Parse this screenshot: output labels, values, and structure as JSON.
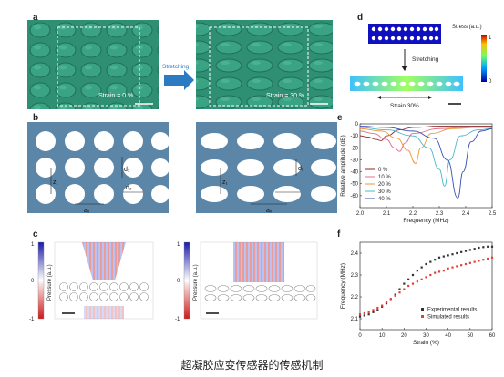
{
  "panel_labels": {
    "a": "a",
    "b": "b",
    "c": "c",
    "d": "d",
    "e": "e",
    "f": "f"
  },
  "panel_a": {
    "strain_left": "Strain = 0 %",
    "strain_right": "Strain = 30 %",
    "arrow_label": "Stretching",
    "color": "#2f8f73"
  },
  "panel_b": {
    "labels": {
      "z1": "z₁",
      "ax": "aₓ",
      "d1": "d₁",
      "d2": "d₂",
      "dx": "dₓ"
    },
    "plate_color": "#5b86a8"
  },
  "panel_c": {
    "colorbar_ticks": [
      "1",
      "0",
      "-1"
    ],
    "ylabel": "Pressure (a.u.)"
  },
  "panel_d": {
    "stretching_label": "Stretching",
    "strain_label": "Strain 30%",
    "colorbar_title": "Stress (a.u.)",
    "colorbar_ticks": [
      "1",
      "0"
    ]
  },
  "chart_data": [
    {
      "type": "line",
      "panel": "e",
      "xlabel": "Frequency (MHz)",
      "ylabel": "Relative amplitude (dB)",
      "xlim": [
        2.0,
        2.5
      ],
      "ylim": [
        -70,
        0
      ],
      "xticks": [
        "2.0",
        "2.1",
        "2.2",
        "2.3",
        "2.4",
        "2.5"
      ],
      "yticks": [
        "0",
        "-10",
        "-20",
        "-30",
        "-40",
        "-50",
        "-60"
      ],
      "legend_position": "lower-left",
      "series": [
        {
          "name": "0 %",
          "color": "#8c2a2a",
          "dip_x": 2.08,
          "dip_y": -14,
          "points": [
            [
              2.0,
              -10
            ],
            [
              2.03,
              -11
            ],
            [
              2.06,
              -13
            ],
            [
              2.08,
              -14
            ],
            [
              2.1,
              -10
            ],
            [
              2.15,
              -5
            ],
            [
              2.2,
              -3
            ],
            [
              2.3,
              -2
            ],
            [
              2.4,
              -2
            ],
            [
              2.5,
              -2
            ]
          ]
        },
        {
          "name": "10 %",
          "color": "#e0708a",
          "dip_x": 2.15,
          "dip_y": -23,
          "points": [
            [
              2.0,
              -6
            ],
            [
              2.05,
              -8
            ],
            [
              2.1,
              -13
            ],
            [
              2.13,
              -20
            ],
            [
              2.15,
              -23
            ],
            [
              2.17,
              -16
            ],
            [
              2.2,
              -8
            ],
            [
              2.3,
              -4
            ],
            [
              2.4,
              -3
            ],
            [
              2.5,
              -3
            ]
          ]
        },
        {
          "name": "20 %",
          "color": "#e89a3a",
          "dip_x": 2.21,
          "dip_y": -33,
          "points": [
            [
              2.0,
              -4
            ],
            [
              2.08,
              -6
            ],
            [
              2.14,
              -12
            ],
            [
              2.18,
              -22
            ],
            [
              2.21,
              -33
            ],
            [
              2.23,
              -20
            ],
            [
              2.27,
              -8
            ],
            [
              2.35,
              -4
            ],
            [
              2.45,
              -3
            ],
            [
              2.5,
              -3
            ]
          ]
        },
        {
          "name": "30 %",
          "color": "#4bb7c9",
          "dip_x": 2.32,
          "dip_y": -52,
          "points": [
            [
              2.0,
              -3
            ],
            [
              2.1,
              -5
            ],
            [
              2.2,
              -10
            ],
            [
              2.26,
              -20
            ],
            [
              2.3,
              -38
            ],
            [
              2.32,
              -52
            ],
            [
              2.34,
              -30
            ],
            [
              2.38,
              -10
            ],
            [
              2.45,
              -5
            ],
            [
              2.5,
              -4
            ]
          ]
        },
        {
          "name": "40 %",
          "color": "#3a4fb3",
          "dip_x": 2.37,
          "dip_y": -62,
          "points": [
            [
              2.0,
              -2
            ],
            [
              2.1,
              -3
            ],
            [
              2.2,
              -6
            ],
            [
              2.28,
              -12
            ],
            [
              2.33,
              -30
            ],
            [
              2.37,
              -62
            ],
            [
              2.39,
              -40
            ],
            [
              2.42,
              -15
            ],
            [
              2.46,
              -6
            ],
            [
              2.5,
              -4
            ]
          ]
        }
      ]
    },
    {
      "type": "scatter",
      "panel": "f",
      "xlabel": "Strain (%)",
      "ylabel": "Frequency (MHz)",
      "xlim": [
        0,
        60
      ],
      "ylim": [
        2.05,
        2.45
      ],
      "xticks": [
        "0",
        "10",
        "20",
        "30",
        "40",
        "50",
        "60"
      ],
      "yticks": [
        "2.1",
        "2.2",
        "2.3",
        "2.4"
      ],
      "legend_position": "lower-right",
      "series": [
        {
          "name": "Experimental results",
          "color": "#333333",
          "x": [
            0,
            2,
            4,
            6,
            8,
            10,
            12,
            14,
            16,
            18,
            20,
            22,
            24,
            26,
            28,
            30,
            32,
            34,
            36,
            38,
            40,
            42,
            44,
            46,
            48,
            50,
            52,
            54,
            56,
            58,
            60
          ],
          "y": [
            2.11,
            2.115,
            2.12,
            2.13,
            2.14,
            2.155,
            2.17,
            2.19,
            2.21,
            2.235,
            2.26,
            2.28,
            2.3,
            2.32,
            2.335,
            2.35,
            2.36,
            2.37,
            2.38,
            2.385,
            2.39,
            2.395,
            2.4,
            2.405,
            2.41,
            2.415,
            2.42,
            2.425,
            2.428,
            2.43,
            2.43
          ]
        },
        {
          "name": "Simulated results",
          "color": "#e0403a",
          "x": [
            0,
            2,
            4,
            6,
            8,
            10,
            12,
            14,
            16,
            18,
            20,
            22,
            24,
            26,
            28,
            30,
            32,
            34,
            36,
            38,
            40,
            42,
            44,
            46,
            48,
            50,
            52,
            54,
            56,
            58,
            60
          ],
          "y": [
            2.12,
            2.125,
            2.13,
            2.14,
            2.15,
            2.16,
            2.175,
            2.19,
            2.205,
            2.22,
            2.235,
            2.25,
            2.26,
            2.27,
            2.28,
            2.29,
            2.3,
            2.31,
            2.315,
            2.32,
            2.33,
            2.335,
            2.34,
            2.345,
            2.35,
            2.355,
            2.36,
            2.365,
            2.37,
            2.375,
            2.38
          ]
        }
      ]
    }
  ],
  "caption": "超凝胶应变传感器的传感机制"
}
